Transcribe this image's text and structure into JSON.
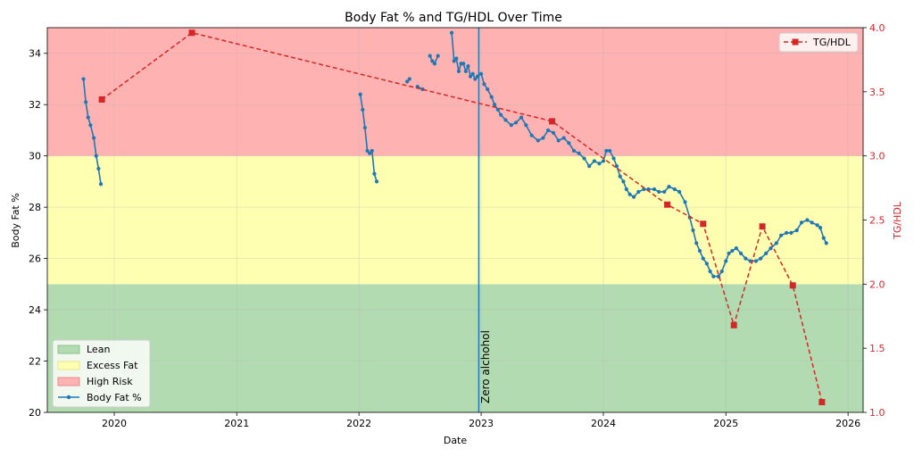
{
  "chart_data": {
    "type": "line",
    "title": "Body Fat % and TG/HDL Over Time",
    "xlabel": "Date",
    "ylabel": "Body Fat %",
    "ylabel_right": "TG/HDL",
    "xlim": [
      "2019-06-15",
      "2026-02-15"
    ],
    "ylim": [
      20,
      35
    ],
    "ylim_right": [
      1.0,
      4.0
    ],
    "x_ticks": [
      "2020",
      "2021",
      "2022",
      "2023",
      "2024",
      "2025",
      "2026"
    ],
    "y_ticks": [
      "20",
      "22",
      "24",
      "26",
      "28",
      "30",
      "32",
      "34"
    ],
    "y_ticks_right": [
      "1.0",
      "1.5",
      "2.0",
      "2.5",
      "3.0",
      "3.5",
      "4.0"
    ],
    "grid": true,
    "zones": [
      {
        "name": "Lean",
        "from": 20,
        "to": 25,
        "color": "#b2dbb2"
      },
      {
        "name": "Excess Fat",
        "from": 25,
        "to": 30,
        "color": "#ffffb2"
      },
      {
        "name": "High Risk",
        "from": 30,
        "to": 35,
        "color": "#ffb2b2"
      }
    ],
    "vline": {
      "x": "2022-12-25",
      "label": "Zero alchohol",
      "color": "#1f77b4"
    },
    "series": [
      {
        "name": "Body Fat %",
        "axis": "left",
        "color": "#1f77b4",
        "style": "solid-dot",
        "segments": [
          [
            [
              "2019-10-01",
              33.0
            ],
            [
              "2019-10-08",
              32.1
            ],
            [
              "2019-10-15",
              31.5
            ],
            [
              "2019-10-22",
              31.2
            ],
            [
              "2019-11-01",
              30.7
            ],
            [
              "2019-11-08",
              30.0
            ],
            [
              "2019-11-15",
              29.5
            ],
            [
              "2019-11-22",
              28.9
            ]
          ],
          [
            [
              "2022-01-05",
              32.4
            ],
            [
              "2022-01-12",
              31.8
            ],
            [
              "2022-01-19",
              31.1
            ],
            [
              "2022-01-26",
              30.2
            ],
            [
              "2022-02-02",
              30.1
            ],
            [
              "2022-02-09",
              30.2
            ],
            [
              "2022-02-16",
              29.3
            ],
            [
              "2022-02-23",
              29.0
            ]
          ],
          [
            [
              "2022-05-25",
              32.9
            ],
            [
              "2022-06-01",
              33.0
            ]
          ],
          [
            [
              "2022-06-25",
              32.7
            ],
            [
              "2022-07-10",
              32.6
            ]
          ],
          [
            [
              "2022-08-01",
              33.9
            ],
            [
              "2022-08-08",
              33.7
            ],
            [
              "2022-08-15",
              33.6
            ],
            [
              "2022-08-25",
              33.9
            ]
          ],
          [
            [
              "2022-10-05",
              34.8
            ],
            [
              "2022-10-12",
              33.7
            ],
            [
              "2022-10-19",
              33.8
            ],
            [
              "2022-10-26",
              33.3
            ],
            [
              "2022-11-02",
              33.6
            ],
            [
              "2022-11-09",
              33.6
            ],
            [
              "2022-11-16",
              33.3
            ],
            [
              "2022-11-23",
              33.5
            ],
            [
              "2022-11-30",
              33.1
            ],
            [
              "2022-12-07",
              33.2
            ],
            [
              "2022-12-14",
              33.0
            ],
            [
              "2022-12-21",
              33.1
            ],
            [
              "2023-01-01",
              33.2
            ],
            [
              "2023-01-10",
              32.8
            ],
            [
              "2023-01-20",
              32.6
            ],
            [
              "2023-02-01",
              32.3
            ],
            [
              "2023-02-10",
              32.0
            ],
            [
              "2023-02-20",
              31.8
            ],
            [
              "2023-03-01",
              31.6
            ],
            [
              "2023-03-15",
              31.4
            ],
            [
              "2023-04-01",
              31.2
            ],
            [
              "2023-04-15",
              31.3
            ],
            [
              "2023-05-01",
              31.5
            ],
            [
              "2023-05-15",
              31.2
            ],
            [
              "2023-06-01",
              30.8
            ],
            [
              "2023-06-20",
              30.6
            ],
            [
              "2023-07-05",
              30.7
            ],
            [
              "2023-07-20",
              31.0
            ],
            [
              "2023-08-05",
              30.9
            ],
            [
              "2023-08-20",
              30.6
            ],
            [
              "2023-09-05",
              30.7
            ],
            [
              "2023-09-20",
              30.5
            ],
            [
              "2023-10-05",
              30.2
            ],
            [
              "2023-10-20",
              30.1
            ],
            [
              "2023-11-05",
              29.9
            ],
            [
              "2023-11-20",
              29.6
            ],
            [
              "2023-12-05",
              29.8
            ],
            [
              "2023-12-20",
              29.7
            ],
            [
              "2024-01-01",
              29.8
            ],
            [
              "2024-01-10",
              30.2
            ],
            [
              "2024-01-20",
              30.2
            ],
            [
              "2024-02-01",
              29.9
            ],
            [
              "2024-02-10",
              29.6
            ],
            [
              "2024-02-20",
              29.2
            ],
            [
              "2024-03-01",
              29.0
            ],
            [
              "2024-03-10",
              28.7
            ],
            [
              "2024-03-20",
              28.5
            ],
            [
              "2024-04-01",
              28.4
            ],
            [
              "2024-04-15",
              28.6
            ],
            [
              "2024-05-01",
              28.7
            ],
            [
              "2024-05-15",
              28.7
            ],
            [
              "2024-06-01",
              28.7
            ],
            [
              "2024-06-15",
              28.6
            ],
            [
              "2024-07-01",
              28.6
            ],
            [
              "2024-07-15",
              28.8
            ],
            [
              "2024-08-01",
              28.7
            ],
            [
              "2024-08-15",
              28.6
            ],
            [
              "2024-09-01",
              28.2
            ],
            [
              "2024-09-15",
              27.6
            ],
            [
              "2024-09-25",
              27.1
            ],
            [
              "2024-10-05",
              26.6
            ],
            [
              "2024-10-15",
              26.3
            ],
            [
              "2024-10-25",
              26.0
            ],
            [
              "2024-11-05",
              25.8
            ],
            [
              "2024-11-15",
              25.5
            ],
            [
              "2024-11-25",
              25.3
            ],
            [
              "2024-12-10",
              25.3
            ],
            [
              "2024-12-20",
              25.5
            ],
            [
              "2025-01-01",
              25.9
            ],
            [
              "2025-01-10",
              26.2
            ],
            [
              "2025-01-20",
              26.3
            ],
            [
              "2025-02-01",
              26.4
            ],
            [
              "2025-02-15",
              26.2
            ],
            [
              "2025-03-01",
              26.0
            ],
            [
              "2025-03-15",
              25.9
            ],
            [
              "2025-04-01",
              25.9
            ],
            [
              "2025-04-15",
              26.0
            ],
            [
              "2025-05-01",
              26.2
            ],
            [
              "2025-05-15",
              26.4
            ],
            [
              "2025-06-01",
              26.6
            ],
            [
              "2025-06-15",
              26.9
            ],
            [
              "2025-07-01",
              27.0
            ],
            [
              "2025-07-15",
              27.0
            ],
            [
              "2025-08-01",
              27.1
            ],
            [
              "2025-08-15",
              27.4
            ],
            [
              "2025-09-01",
              27.5
            ],
            [
              "2025-09-15",
              27.4
            ],
            [
              "2025-10-01",
              27.3
            ],
            [
              "2025-10-10",
              27.2
            ],
            [
              "2025-10-20",
              26.8
            ],
            [
              "2025-10-28",
              26.6
            ]
          ]
        ]
      },
      {
        "name": "TG/HDL",
        "axis": "right",
        "color": "#d62728",
        "style": "dashed-square",
        "points": [
          [
            "2019-11-25",
            3.44
          ],
          [
            "2020-08-20",
            3.96
          ],
          [
            "2023-08-01",
            3.27
          ],
          [
            "2024-07-10",
            2.62
          ],
          [
            "2024-10-25",
            2.47
          ],
          [
            "2025-01-25",
            1.68
          ],
          [
            "2025-04-20",
            2.45
          ],
          [
            "2025-07-20",
            1.99
          ],
          [
            "2025-10-15",
            1.08
          ]
        ]
      }
    ],
    "legends": [
      {
        "placement": "lower-left",
        "entries": [
          "Lean",
          "Excess Fat",
          "High Risk",
          "Body Fat %"
        ]
      },
      {
        "placement": "upper-right",
        "entries": [
          "TG/HDL"
        ]
      }
    ]
  }
}
